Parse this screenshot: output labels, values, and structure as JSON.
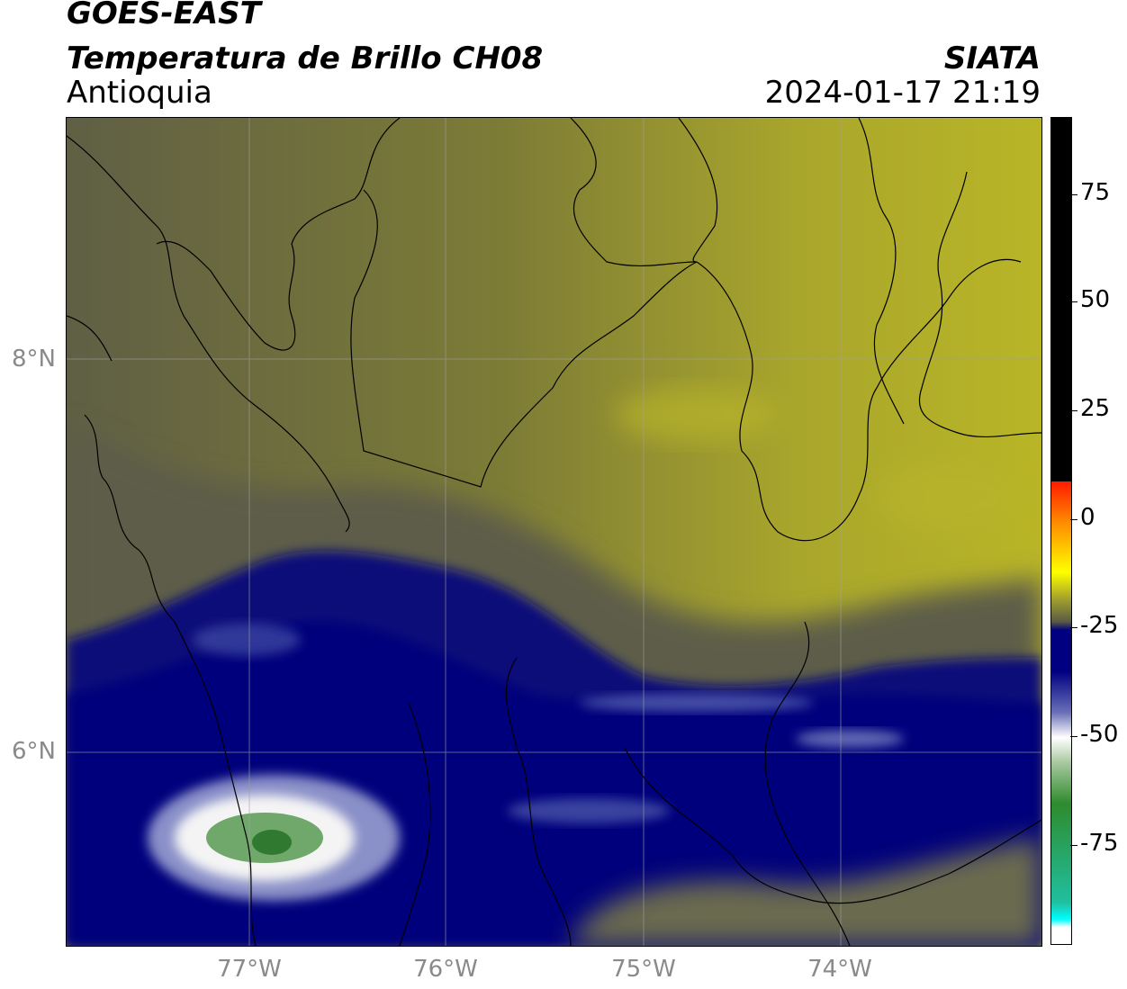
{
  "header": {
    "satellite": "GOES-EAST",
    "product": "Temperatura de Brillo CH08",
    "region": "Antioquia",
    "organization": "SIATA",
    "timestamp": "2024-01-17 21:19"
  },
  "map": {
    "lat_ticks": [
      "8°N",
      "6°N"
    ],
    "lon_ticks": [
      "77°W",
      "76°W",
      "75°W",
      "74°W"
    ]
  },
  "colorbar": {
    "ticks": [
      "75",
      "50",
      "25",
      "0",
      "-25",
      "-50",
      "-75"
    ],
    "colors": {
      "black": "#000000",
      "red": "#ff1a00",
      "orange": "#ff8c00",
      "yellow": "#ffff00",
      "olive": "#a9a62a",
      "dark_olive": "#5a5a45",
      "navy": "#000080",
      "white": "#ffffff",
      "green": "#2e8b2e",
      "teal": "#20c0a0",
      "cyan": "#00ffff"
    }
  },
  "chart_data": {
    "type": "heatmap",
    "title": "Temperatura de Brillo CH08",
    "xlabel": "",
    "ylabel": "",
    "lon_range": [
      "77.9°W",
      "72.9°W"
    ],
    "lat_range": [
      "4.9°N",
      "9.1°N"
    ],
    "colorbar_range": [
      -93,
      93
    ],
    "colorbar_ticks": [
      75,
      50,
      25,
      0,
      -25,
      -50,
      -75
    ]
  }
}
